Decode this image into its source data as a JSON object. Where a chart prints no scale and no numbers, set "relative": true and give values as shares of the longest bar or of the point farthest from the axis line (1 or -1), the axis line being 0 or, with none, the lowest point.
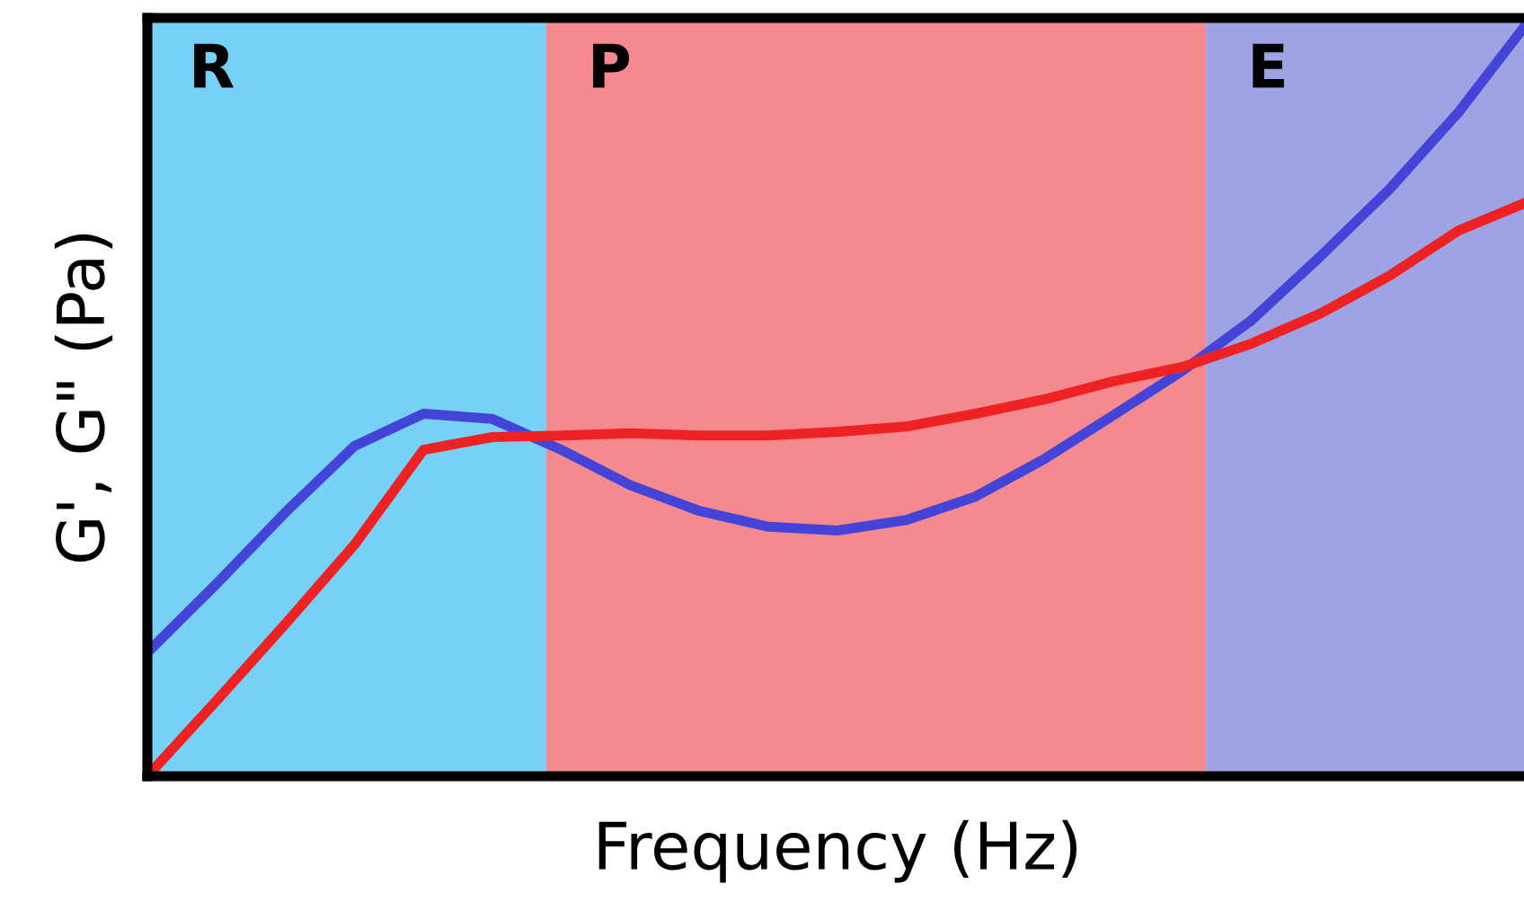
{
  "chart_data": {
    "type": "line",
    "relative": true,
    "xlabel": "Frequency (Hz)",
    "ylabel": "G', G\" (Pa)",
    "marker": "none",
    "line_style": "solid",
    "categories": [
      null,
      null,
      null,
      null,
      null,
      null,
      null,
      null,
      null,
      null,
      null,
      null,
      null,
      null,
      null,
      null,
      null,
      null,
      null,
      null,
      null
    ],
    "series": [
      {
        "color": "#4444d8",
        "values": [
          0.164,
          0.255,
          0.35,
          0.438,
          0.481,
          0.474,
          0.433,
          0.386,
          0.352,
          0.331,
          0.326,
          0.34,
          0.371,
          0.421,
          0.479,
          0.538,
          0.605,
          0.69,
          0.779,
          0.881,
          1.0
        ]
      },
      {
        "color": "#ee2222",
        "values": [
          0.0,
          0.1,
          0.202,
          0.307,
          0.433,
          0.45,
          0.452,
          0.455,
          0.452,
          0.452,
          0.457,
          0.464,
          0.481,
          0.5,
          0.524,
          0.543,
          0.574,
          0.614,
          0.664,
          0.724,
          0.762
        ]
      }
    ],
    "annotations": [
      "R",
      "P",
      "E"
    ]
  }
}
